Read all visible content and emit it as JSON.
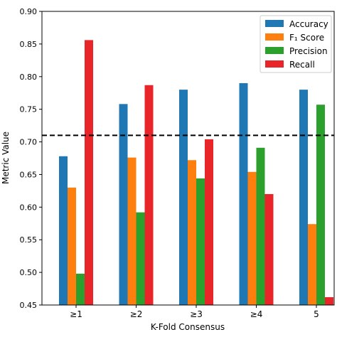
{
  "chart_data": {
    "type": "bar",
    "xlabel": "K-Fold Consensus",
    "ylabel": "Metric Value",
    "ylim": [
      0.45,
      0.9
    ],
    "yticks": [
      "0.45",
      "0.50",
      "0.55",
      "0.60",
      "0.65",
      "0.70",
      "0.75",
      "0.80",
      "0.85",
      "0.90"
    ],
    "categories": [
      "≥1",
      "≥2",
      "≥3",
      "≥4",
      "5"
    ],
    "series": [
      {
        "name": "Accuracy",
        "color": "#1f77b4",
        "values": [
          0.678,
          0.758,
          0.78,
          0.79,
          0.78
        ]
      },
      {
        "name": "F₁ Score",
        "color": "#ff7f0e",
        "values": [
          0.63,
          0.676,
          0.672,
          0.654,
          0.574
        ]
      },
      {
        "name": "Precision",
        "color": "#2ca02c",
        "values": [
          0.498,
          0.592,
          0.644,
          0.691,
          0.757
        ]
      },
      {
        "name": "Recall",
        "color": "#e8262a",
        "values": [
          0.856,
          0.787,
          0.704,
          0.62,
          0.462
        ]
      }
    ],
    "reference_line": 0.71,
    "legend_position": "top-right",
    "grid": false
  }
}
